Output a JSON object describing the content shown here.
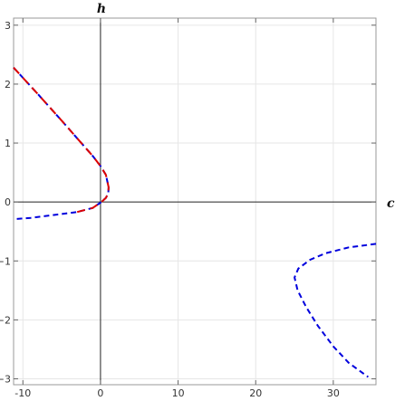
{
  "chart_data": {
    "type": "line",
    "title": "",
    "xlabel": "c",
    "ylabel": "h",
    "xlim": [
      -11.2,
      35.5
    ],
    "ylim": [
      -3.1,
      3.12
    ],
    "grid": true,
    "legend": "none",
    "x_ticks": [
      -10,
      0,
      10,
      20,
      30
    ],
    "x_tick_labels": [
      "-10",
      "0",
      "10",
      "20",
      "30"
    ],
    "y_ticks": [
      -3,
      -2,
      -1,
      0,
      1,
      2,
      3
    ],
    "y_tick_labels": [
      "−3",
      "−2",
      "−1",
      "0",
      "1",
      "2",
      "3"
    ],
    "series": [
      {
        "color": "#0000dd",
        "style": "dashed",
        "points": [
          [
            -11.2,
            2.28
          ],
          [
            -8,
            1.82
          ],
          [
            -5,
            1.38
          ],
          [
            -3,
            1.08
          ],
          [
            -1,
            0.78
          ],
          [
            0,
            0.61
          ],
          [
            0.7,
            0.46
          ],
          [
            1.05,
            0.25
          ],
          [
            1.0,
            0.15
          ],
          [
            0.7,
            0.07
          ],
          [
            0.1,
            0.0
          ],
          [
            -1,
            -0.1
          ],
          [
            -3,
            -0.17
          ],
          [
            -6,
            -0.22
          ],
          [
            -9,
            -0.27
          ],
          [
            -11,
            -0.29
          ]
        ]
      },
      {
        "color": "#dd0000",
        "style": "dashed",
        "points": [
          [
            -11.2,
            2.28
          ],
          [
            -8,
            1.82
          ],
          [
            -5,
            1.38
          ],
          [
            -3,
            1.08
          ],
          [
            -1,
            0.78
          ],
          [
            0,
            0.61
          ],
          [
            0.7,
            0.46
          ],
          [
            1.05,
            0.25
          ],
          [
            1.0,
            0.15
          ],
          [
            0.7,
            0.07
          ],
          [
            0.1,
            0.0
          ],
          [
            -1,
            -0.1
          ],
          [
            -3,
            -0.17
          ]
        ]
      },
      {
        "color": "#0000dd",
        "style": "dashed",
        "points": [
          [
            35.5,
            -0.71
          ],
          [
            32,
            -0.77
          ],
          [
            29,
            -0.87
          ],
          [
            27,
            -0.98
          ],
          [
            25.5,
            -1.13
          ],
          [
            25.0,
            -1.28
          ],
          [
            25.4,
            -1.5
          ],
          [
            26.5,
            -1.78
          ],
          [
            28,
            -2.1
          ],
          [
            30,
            -2.45
          ],
          [
            32,
            -2.73
          ],
          [
            34.5,
            -2.97
          ]
        ]
      }
    ]
  }
}
